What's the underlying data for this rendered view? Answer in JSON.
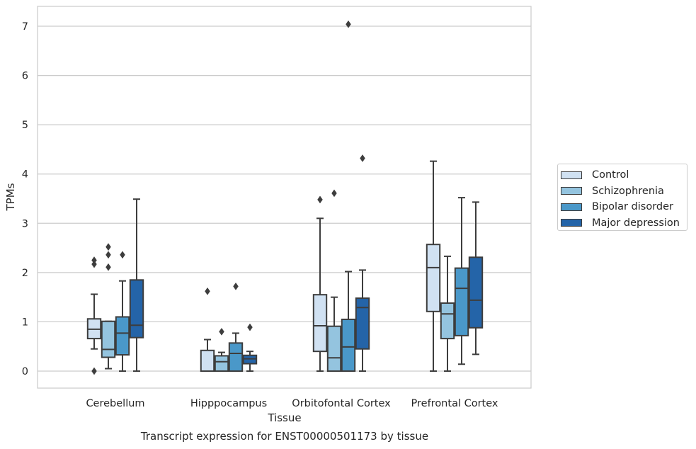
{
  "chart_data": {
    "type": "box",
    "title": "Transcript expression for ENST00000501173 by tissue",
    "xlabel": "Tissue",
    "ylabel": "TPMs",
    "ylim": [
      -0.35,
      7.4
    ],
    "yticks": [
      "0",
      "1",
      "2",
      "3",
      "4",
      "5",
      "6",
      "7"
    ],
    "grid": true,
    "legend_position": "right",
    "categories": [
      "Cerebellum",
      "Hipppocampus",
      "Orbitofontal Cortex",
      "Prefrontal Cortex"
    ],
    "series": [
      {
        "name": "Control",
        "color": "#d0e1f2",
        "boxes": [
          {
            "whisker_low": 0.45,
            "q1": 0.66,
            "median": 0.85,
            "q3": 1.06,
            "whisker_high": 1.56,
            "outliers": [
              0.0,
              2.17,
              2.25
            ]
          },
          {
            "whisker_low": 0.0,
            "q1": 0.0,
            "median": 0.0,
            "q3": 0.42,
            "whisker_high": 0.64,
            "outliers": [
              1.62
            ]
          },
          {
            "whisker_low": 0.0,
            "q1": 0.4,
            "median": 0.92,
            "q3": 1.55,
            "whisker_high": 3.1,
            "outliers": [
              3.48
            ]
          },
          {
            "whisker_low": 0.0,
            "q1": 1.21,
            "median": 2.1,
            "q3": 2.57,
            "whisker_high": 4.26,
            "outliers": []
          }
        ]
      },
      {
        "name": "Schizophrenia",
        "color": "#94c4df",
        "boxes": [
          {
            "whisker_low": 0.05,
            "q1": 0.28,
            "median": 0.44,
            "q3": 1.01,
            "whisker_high": 1.01,
            "outliers": [
              2.11,
              2.36,
              2.52
            ]
          },
          {
            "whisker_low": 0.0,
            "q1": 0.0,
            "median": 0.19,
            "q3": 0.31,
            "whisker_high": 0.38,
            "outliers": [
              0.8
            ]
          },
          {
            "whisker_low": 0.0,
            "q1": 0.0,
            "median": 0.27,
            "q3": 0.91,
            "whisker_high": 1.5,
            "outliers": [
              3.61
            ]
          },
          {
            "whisker_low": 0.0,
            "q1": 0.66,
            "median": 1.16,
            "q3": 1.38,
            "whisker_high": 2.33,
            "outliers": []
          }
        ]
      },
      {
        "name": "Bipolar disorder",
        "color": "#4a98c9",
        "boxes": [
          {
            "whisker_low": 0.0,
            "q1": 0.33,
            "median": 0.77,
            "q3": 1.1,
            "whisker_high": 1.83,
            "outliers": [
              2.36
            ]
          },
          {
            "whisker_low": 0.0,
            "q1": 0.0,
            "median": 0.36,
            "q3": 0.57,
            "whisker_high": 0.77,
            "outliers": [
              1.72
            ]
          },
          {
            "whisker_low": 0.0,
            "q1": 0.0,
            "median": 0.49,
            "q3": 1.05,
            "whisker_high": 2.02,
            "outliers": [
              7.04
            ]
          },
          {
            "whisker_low": 0.14,
            "q1": 0.72,
            "median": 1.68,
            "q3": 2.09,
            "whisker_high": 3.52,
            "outliers": []
          }
        ]
      },
      {
        "name": "Major depression",
        "color": "#2464a8",
        "boxes": [
          {
            "whisker_low": 0.0,
            "q1": 0.68,
            "median": 0.93,
            "q3": 1.85,
            "whisker_high": 3.49,
            "outliers": []
          },
          {
            "whisker_low": 0.0,
            "q1": 0.15,
            "median": 0.25,
            "q3": 0.32,
            "whisker_high": 0.4,
            "outliers": [
              0.89
            ]
          },
          {
            "whisker_low": 0.0,
            "q1": 0.45,
            "median": 1.29,
            "q3": 1.48,
            "whisker_high": 2.05,
            "outliers": [
              4.32
            ]
          },
          {
            "whisker_low": 0.34,
            "q1": 0.88,
            "median": 1.44,
            "q3": 2.31,
            "whisker_high": 3.43,
            "outliers": []
          }
        ]
      }
    ]
  }
}
